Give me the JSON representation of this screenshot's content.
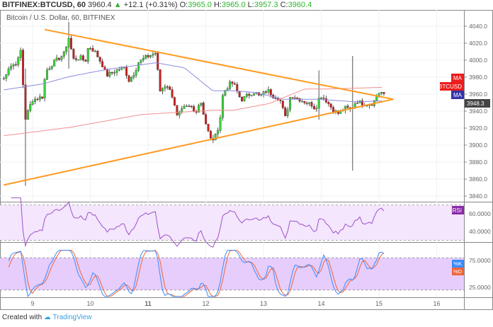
{
  "header": {
    "symbol": "BITFINEX:BTCUSD, 60",
    "last": "3960.4",
    "change": "+12.1 (+0.31%)",
    "o_label": "O:",
    "o": "3965.0",
    "h_label": "H:",
    "h": "3965.0",
    "l_label": "L:",
    "l": "3957.3",
    "c_label": "C:",
    "c": "3960.4"
  },
  "footer": {
    "created": "Created with",
    "brand": "TradingView"
  },
  "colors": {
    "up": "#3ad33a",
    "down": "#d01e1e",
    "trend": "#ff9a1f",
    "ma_fast": "#8c8ce0",
    "ma_slow": "#f39090",
    "rsi": "#a050c8",
    "k": "#3a8cff",
    "d": "#f0643a"
  },
  "chart_data": [
    {
      "type": "candlestick",
      "title": "Bitcoin / U.S. Dollar, 60, BITFINEX",
      "ylim": [
        3840,
        4050
      ],
      "yticks": [
        "4040.0",
        "4020.0",
        "4000.0",
        "3980.0",
        "3960.0",
        "3940.0",
        "3920.0",
        "3900.0",
        "3880.0",
        "3860.0",
        "3840.0"
      ],
      "xticks": [
        "9",
        "10",
        "11",
        "12",
        "13",
        "14",
        "15",
        "16"
      ],
      "close_path": [
        [
          8.5,
          3978
        ],
        [
          8.58,
          3991
        ],
        [
          8.74,
          3998
        ],
        [
          8.8,
          4013
        ],
        [
          8.87,
          3930
        ],
        [
          8.99,
          3953
        ],
        [
          9.17,
          3957
        ],
        [
          9.23,
          3987
        ],
        [
          9.36,
          3997
        ],
        [
          9.54,
          4007
        ],
        [
          9.63,
          4027
        ],
        [
          9.7,
          4001
        ],
        [
          9.85,
          4003
        ],
        [
          9.91,
          3997
        ],
        [
          9.97,
          4017
        ],
        [
          10.09,
          4009
        ],
        [
          10.21,
          3994
        ],
        [
          10.28,
          3982
        ],
        [
          10.46,
          3988
        ],
        [
          10.58,
          3992
        ],
        [
          10.67,
          3976
        ],
        [
          10.77,
          3986
        ],
        [
          10.83,
          3997
        ],
        [
          10.95,
          4003
        ],
        [
          11.14,
          4009
        ],
        [
          11.2,
          3963
        ],
        [
          11.32,
          3972
        ],
        [
          11.44,
          3955
        ],
        [
          11.5,
          3934
        ],
        [
          11.63,
          3944
        ],
        [
          11.75,
          3945
        ],
        [
          11.81,
          3937
        ],
        [
          11.91,
          3953
        ],
        [
          11.99,
          3928
        ],
        [
          12.08,
          3907
        ],
        [
          12.15,
          3907
        ],
        [
          12.24,
          3926
        ],
        [
          12.3,
          3962
        ],
        [
          12.42,
          3972
        ],
        [
          12.48,
          3973
        ],
        [
          12.61,
          3953
        ],
        [
          12.73,
          3959
        ],
        [
          12.85,
          3963
        ],
        [
          12.93,
          3957
        ],
        [
          13.07,
          3965
        ],
        [
          13.16,
          3958
        ],
        [
          13.28,
          3955
        ],
        [
          13.38,
          3932
        ],
        [
          13.47,
          3959
        ],
        [
          13.59,
          3955
        ],
        [
          13.71,
          3951
        ],
        [
          13.83,
          3948
        ],
        [
          13.9,
          3942
        ],
        [
          13.98,
          3959
        ],
        [
          14.08,
          3953
        ],
        [
          14.2,
          3942
        ],
        [
          14.3,
          3937
        ],
        [
          14.41,
          3944
        ],
        [
          14.51,
          3942
        ],
        [
          14.61,
          3952
        ],
        [
          14.75,
          3948
        ],
        [
          14.9,
          3949
        ],
        [
          14.96,
          3958
        ],
        [
          15.02,
          3963
        ],
        [
          15.09,
          3960.4
        ]
      ],
      "spikes": [
        {
          "day": 8.87,
          "high": 3990,
          "low": 3852
        },
        {
          "day": 9.63,
          "high": 4045,
          "low": 3990
        },
        {
          "day": 13.98,
          "high": 3988,
          "low": 3930
        },
        {
          "day": 14.53,
          "high": 4005,
          "low": 3870
        }
      ],
      "trendlines": [
        {
          "from": [
            9.21,
            4036
          ],
          "to": [
            15.25,
            3954
          ]
        },
        {
          "from": [
            8.5,
            3853
          ],
          "to": [
            15.25,
            3954
          ]
        }
      ],
      "ma_fast": [
        [
          8.5,
          3965
        ],
        [
          9.17,
          3972
        ],
        [
          9.66,
          3981
        ],
        [
          10.28,
          3989
        ],
        [
          11.14,
          3997
        ],
        [
          11.63,
          3991
        ],
        [
          12.12,
          3964
        ],
        [
          12.48,
          3964
        ],
        [
          12.85,
          3962
        ],
        [
          13.34,
          3954
        ],
        [
          13.96,
          3954
        ],
        [
          14.57,
          3951
        ],
        [
          15.06,
          3952
        ]
      ],
      "ma_slow": [
        [
          8.5,
          3911
        ],
        [
          9.66,
          3921
        ],
        [
          10.89,
          3936
        ],
        [
          12.12,
          3941
        ],
        [
          12.48,
          3941
        ],
        [
          13.1,
          3949
        ],
        [
          13.71,
          3966
        ],
        [
          14.08,
          3966
        ],
        [
          15.06,
          3968
        ]
      ],
      "labels": {
        "ma1": "MA",
        "sym": "BTCUSD",
        "ma2": "MA",
        "crosshair": "3948.3"
      }
    },
    {
      "type": "line",
      "name": "RSI",
      "yticks": [
        "60.0000",
        "40.0000"
      ],
      "band": [
        30,
        70
      ]
    },
    {
      "type": "line",
      "series": [
        {
          "name": "%K"
        },
        {
          "name": "%D"
        }
      ],
      "yticks": [
        "75.0000",
        "25.0000"
      ],
      "band": [
        20,
        80
      ]
    }
  ]
}
